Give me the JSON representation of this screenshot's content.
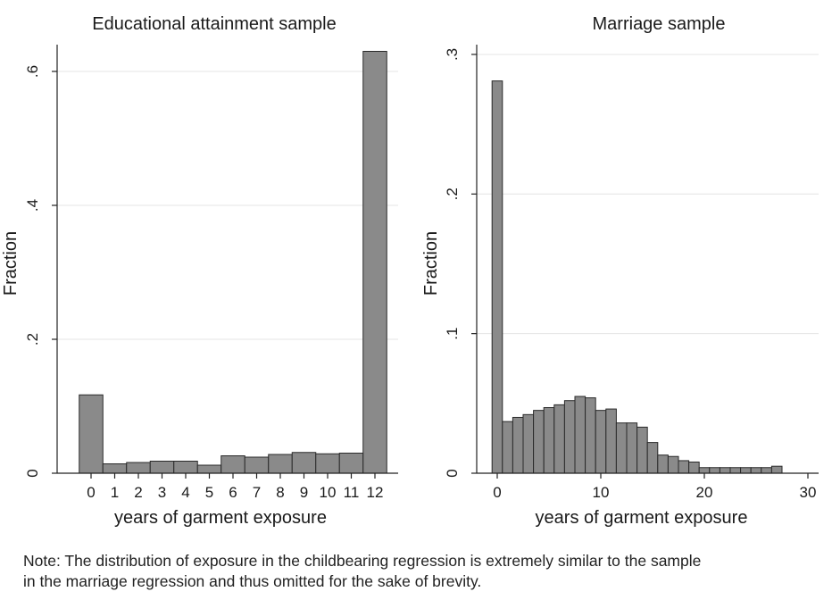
{
  "chart_data": [
    {
      "type": "bar",
      "title": "Educational attainment sample",
      "xlabel": "years of garment exposure",
      "ylabel": "Fraction",
      "ylim": [
        0,
        0.64
      ],
      "yticks": [
        0,
        0.2,
        0.4,
        0.6
      ],
      "ytick_labels": [
        "0",
        ".2",
        ".4",
        ".6"
      ],
      "grid": true,
      "bar_color": "#8a8a8a",
      "categories": [
        "0",
        "1",
        "2",
        "3",
        "4",
        "5",
        "6",
        "7",
        "8",
        "9",
        "10",
        "11",
        "12"
      ],
      "values": [
        0.117,
        0.014,
        0.016,
        0.018,
        0.018,
        0.012,
        0.026,
        0.024,
        0.028,
        0.031,
        0.029,
        0.03,
        0.63
      ]
    },
    {
      "type": "bar",
      "title": "Marriage sample",
      "xlabel": "years of garment exposure",
      "ylabel": "Fraction",
      "xlim": [
        -1,
        31
      ],
      "ylim": [
        0,
        0.307
      ],
      "xticks": [
        0,
        10,
        20,
        30
      ],
      "xtick_labels": [
        "0",
        "10",
        "20",
        "30"
      ],
      "yticks": [
        0,
        0.1,
        0.2,
        0.3
      ],
      "ytick_labels": [
        "0",
        ".1",
        ".2",
        ".3"
      ],
      "grid": true,
      "bar_color": "#8a8a8a",
      "x": [
        0,
        1,
        2,
        3,
        4,
        5,
        6,
        7,
        8,
        9,
        10,
        11,
        12,
        13,
        14,
        15,
        16,
        17,
        18,
        19,
        20,
        21,
        22,
        23,
        24,
        25,
        26,
        27
      ],
      "values": [
        0.281,
        0.037,
        0.04,
        0.042,
        0.045,
        0.047,
        0.049,
        0.052,
        0.055,
        0.054,
        0.045,
        0.046,
        0.036,
        0.036,
        0.033,
        0.022,
        0.013,
        0.012,
        0.009,
        0.008,
        0.004,
        0.004,
        0.004,
        0.004,
        0.004,
        0.004,
        0.004,
        0.005
      ]
    }
  ],
  "note": {
    "line1": "Note: The distribution of exposure in the childbearing regression is extremely similar to the sample",
    "line2": "in the marriage regression and thus omitted for the sake of brevity."
  }
}
